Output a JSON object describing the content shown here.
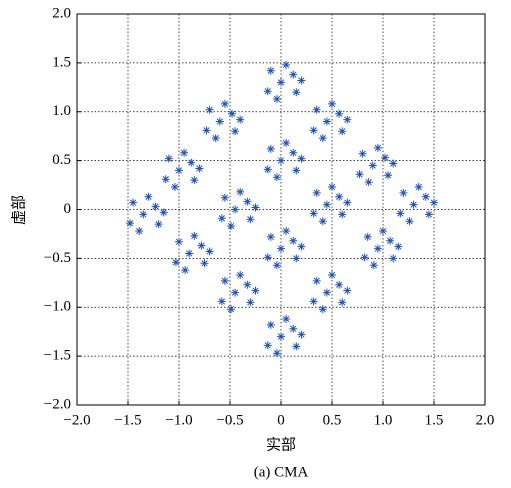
{
  "chart_data": {
    "type": "scatter",
    "color": "#2352b0",
    "grid": true,
    "xlabel": "实部",
    "ylabel": "虚部",
    "caption": "(a) CMA",
    "xlim": [
      -2,
      2
    ],
    "ylim": [
      -2,
      2
    ],
    "xticks": [
      {
        "value": -2,
        "label": "−2.0"
      },
      {
        "value": -1.5,
        "label": "−1.5"
      },
      {
        "value": -1,
        "label": "−1.0"
      },
      {
        "value": -0.5,
        "label": "−0.5"
      },
      0,
      0.5,
      {
        "value": 1,
        "label": "1.0"
      },
      1.5,
      {
        "value": 2,
        "label": "2.0"
      }
    ],
    "yticks": [
      {
        "value": -2,
        "label": "−2.0"
      },
      {
        "value": -1.5,
        "label": "−1.5"
      },
      {
        "value": -1,
        "label": "−1.0"
      },
      {
        "value": -0.5,
        "label": "−0.5"
      },
      0,
      0.5,
      {
        "value": 1,
        "label": "1.0"
      },
      1.5,
      {
        "value": 2,
        "label": "2.0"
      }
    ],
    "x": [
      0,
      0.12,
      -0.1,
      0.15,
      -0.13,
      0.05,
      -0.04,
      0.2,
      -0.6,
      -0.48,
      -0.7,
      -0.45,
      -0.73,
      -0.55,
      -0.64,
      -0.4,
      0.45,
      0.57,
      0.35,
      0.6,
      0.32,
      0.5,
      0.41,
      0.65,
      -1,
      -0.88,
      -1.1,
      -0.85,
      -1.13,
      -0.95,
      -1.04,
      -0.8,
      0,
      0.12,
      -0.1,
      0.15,
      -0.13,
      0.05,
      -0.04,
      0.2,
      0.9,
      1.02,
      0.8,
      1.05,
      0.77,
      0.95,
      0.86,
      1.1,
      -1.35,
      -1.23,
      -1.45,
      -1.2,
      -1.48,
      -1.3,
      -1.39,
      -1.15,
      -0.45,
      -0.33,
      -0.55,
      -0.3,
      -0.58,
      -0.4,
      -0.49,
      -0.25,
      0.45,
      0.57,
      0.35,
      0.6,
      0.32,
      0.5,
      0.41,
      0.65,
      1.3,
      1.42,
      1.2,
      1.45,
      1.17,
      1.35,
      1.26,
      1.5,
      -0.9,
      -0.78,
      -1,
      -0.75,
      -1.03,
      -0.85,
      -0.94,
      -0.7,
      0,
      0.12,
      -0.1,
      0.15,
      -0.13,
      0.05,
      -0.04,
      0.2,
      0.95,
      1.07,
      0.85,
      1.1,
      0.82,
      1,
      0.91,
      1.15,
      -0.45,
      -0.33,
      -0.55,
      -0.3,
      -0.58,
      -0.4,
      -0.49,
      -0.25,
      0.45,
      0.57,
      0.35,
      0.6,
      0.32,
      0.5,
      0.41,
      0.65,
      0,
      0.12,
      -0.1,
      0.15,
      -0.13,
      0.05,
      -0.04,
      0.2
    ],
    "values": [
      1.3,
      1.38,
      1.42,
      1.2,
      1.21,
      1.48,
      1.13,
      1.32,
      0.9,
      0.98,
      1.02,
      0.8,
      0.81,
      1.08,
      0.73,
      0.92,
      0.9,
      0.98,
      1.02,
      0.8,
      0.81,
      1.08,
      0.73,
      0.92,
      0.4,
      0.48,
      0.52,
      0.3,
      0.31,
      0.58,
      0.23,
      0.42,
      0.5,
      0.58,
      0.62,
      0.4,
      0.41,
      0.68,
      0.33,
      0.52,
      0.45,
      0.53,
      0.57,
      0.35,
      0.36,
      0.63,
      0.28,
      0.47,
      -0.05,
      0.03,
      0.07,
      -0.15,
      -0.14,
      0.13,
      -0.22,
      -0.03,
      0,
      0.08,
      0.12,
      -0.1,
      -0.09,
      0.18,
      -0.17,
      0.02,
      0.05,
      0.13,
      0.17,
      -0.05,
      -0.04,
      0.23,
      -0.12,
      0.07,
      0.05,
      0.13,
      0.17,
      -0.05,
      -0.04,
      0.23,
      -0.12,
      0.07,
      -0.45,
      -0.37,
      -0.33,
      -0.55,
      -0.54,
      -0.27,
      -0.62,
      -0.43,
      -0.4,
      -0.32,
      -0.28,
      -0.5,
      -0.49,
      -0.22,
      -0.57,
      -0.38,
      -0.4,
      -0.32,
      -0.28,
      -0.5,
      -0.49,
      -0.22,
      -0.57,
      -0.38,
      -0.85,
      -0.77,
      -0.73,
      -0.95,
      -0.94,
      -0.67,
      -1.02,
      -0.83,
      -0.85,
      -0.77,
      -0.73,
      -0.95,
      -0.94,
      -0.67,
      -1.02,
      -0.83,
      -1.3,
      -1.22,
      -1.18,
      -1.4,
      -1.39,
      -1.12,
      -1.47,
      -1.28
    ]
  }
}
